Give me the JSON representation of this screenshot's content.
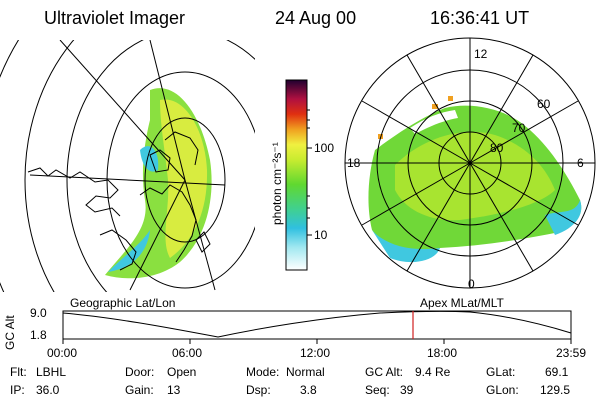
{
  "header": {
    "instrument": "Ultraviolet Imager",
    "date": "24 Aug 00",
    "time": "16:36:41 UT"
  },
  "left_panel": {
    "label": "Geographic Lat/Lon"
  },
  "right_panel": {
    "label": "Apex MLat/MLT",
    "mlt_labels": [
      "12",
      "18",
      "6",
      "0"
    ],
    "mlat_labels": [
      "60",
      "70",
      "80"
    ]
  },
  "colorbar": {
    "unit": "photon cm⁻²s⁻¹",
    "ticks": [
      "100",
      "10"
    ],
    "scale": "log"
  },
  "altitude_plot": {
    "ylabel": "GC Alt",
    "yticks": [
      "9.0",
      "1.8"
    ],
    "xticks": [
      "00:00",
      "06:00",
      "12:00",
      "18:00",
      "23:59"
    ],
    "current_time_marker": "16:36"
  },
  "info": {
    "filter_label": "Flt:",
    "filter_value": "LBHL",
    "ip_label": "IP:",
    "ip_value": "36.0",
    "door_label": "Door:",
    "door_value": "Open",
    "gain_label": "Gain:",
    "gain_value": "13",
    "mode_label": "Mode:",
    "mode_value": "Normal",
    "dsp_label": "Dsp:",
    "dsp_value": "3.8",
    "gcalt_label": "GC Alt:",
    "gcalt_value": "9.4 Re",
    "seq_label": "Seq:",
    "seq_value": "39",
    "glat_label": "GLat:",
    "glat_value": "69.1",
    "glon_label": "GLon:",
    "glon_value": "129.5"
  },
  "colors": {
    "low": "#ffffff",
    "cyan": "#40c8e0",
    "green": "#50d040",
    "yellow": "#e8f040",
    "orange": "#f0a020",
    "red": "#e01010",
    "dark": "#400040",
    "marker": "#d02020"
  }
}
